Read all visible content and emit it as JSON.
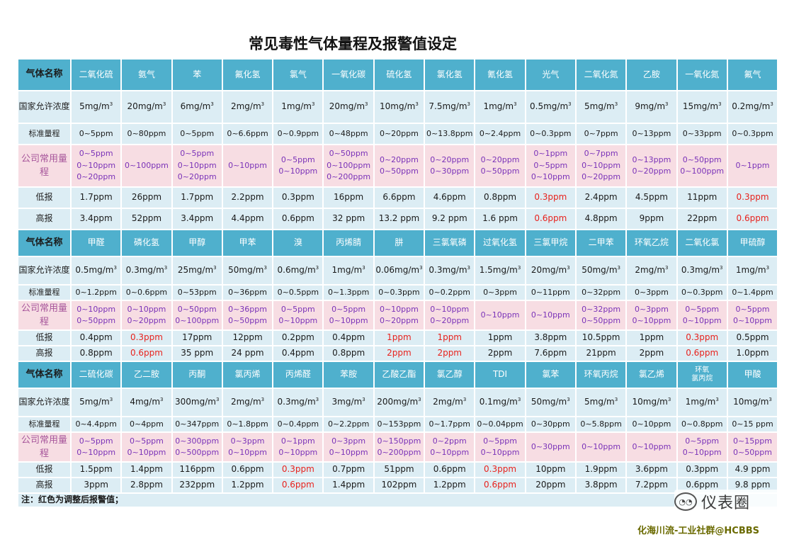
{
  "title": "常见毒性气体量程及报警值设定",
  "note": "注：红色为调整后报警值；",
  "watermark": "仪表圈",
  "credit": "化海川流-工业社群@HCBBS",
  "labels": {
    "gas_name": "气体名称",
    "concentration": "国家允许浓度",
    "standard_range": "标准量程",
    "company_range": "公司常用量程",
    "low_alarm": "低报",
    "high_alarm": "高报"
  },
  "colors": {
    "header": "#4fb0cd",
    "row": "#dcedf4",
    "company_row": "#f7dde3",
    "purple_text": "#7a32b8",
    "alarm_adjusted": "#e8221d"
  },
  "sections": [
    {
      "gases": [
        {
          "name": "二氧化硫",
          "conc": "5mg/m",
          "std": "0~5ppm",
          "company": [
            "0~5ppm",
            "0~10ppm",
            "0~20ppm"
          ],
          "low": "1.7ppm",
          "high": "3.4ppm",
          "adjusted": false
        },
        {
          "name": "氨气",
          "conc": "20mg/m",
          "std": "0~80ppm",
          "company": [
            "0~100ppm"
          ],
          "low": "26ppm",
          "high": "52ppm",
          "adjusted": false
        },
        {
          "name": "苯",
          "conc": "6mg/m",
          "std": "0~5ppm",
          "company": [
            "0~5ppm",
            "0~10ppm",
            "0~20ppm"
          ],
          "low": "1.7ppm",
          "high": "3.4ppm",
          "adjusted": false
        },
        {
          "name": "氟化氢",
          "conc": "2mg/m",
          "std": "0~6.6ppm",
          "company": [
            "0~10ppm"
          ],
          "low": "2.2ppm",
          "high": "4.4ppm",
          "adjusted": false
        },
        {
          "name": "氯气",
          "conc": "1mg/m",
          "std": "0~0.9ppm",
          "company": [
            "0~5ppm",
            "0~10ppm"
          ],
          "low": "0.3ppm",
          "high": "0.6ppm",
          "adjusted": false
        },
        {
          "name": "一氧化碳",
          "conc": "20mg/m",
          "std": "0~48ppm",
          "company": [
            "0~50ppm",
            "0~100ppm",
            "0~200ppm"
          ],
          "low": "16ppm",
          "high": "32 ppm",
          "adjusted": false
        },
        {
          "name": "硫化氢",
          "conc": "10mg/m",
          "std": "0~20ppm",
          "company": [
            "0~20ppm",
            "0~50ppm"
          ],
          "low": "6.6ppm",
          "high": "13.2 ppm",
          "adjusted": false
        },
        {
          "name": "氯化氢",
          "conc": "7.5mg/m",
          "std": "0~13.8ppm",
          "company": [
            "0~20ppm",
            "0~30ppm"
          ],
          "low": "4.6ppm",
          "high": "9.2 ppm",
          "adjusted": false
        },
        {
          "name": "氰化氢",
          "conc": "1mg/m",
          "std": "0~2.4ppm",
          "company": [
            "0~20ppm",
            "0~50ppm"
          ],
          "low": "0.8ppm",
          "high": "1.6 ppm",
          "adjusted": false
        },
        {
          "name": "光气",
          "conc": "0.5mg/m",
          "std": "0~0.3ppm",
          "company": [
            "0~1ppm",
            "0~5ppm",
            "0~10ppm"
          ],
          "low": "0.3ppm",
          "high": "0.6ppm",
          "adjusted": true
        },
        {
          "name": "二氧化氮",
          "conc": "5mg/m",
          "std": "0~7ppm",
          "company": [
            "0~7ppm",
            "0~10ppm",
            "0~20ppm"
          ],
          "low": "2.4ppm",
          "high": "4.8ppm",
          "adjusted": false
        },
        {
          "name": "乙胺",
          "conc": "9mg/m",
          "std": "0~13ppm",
          "company": [
            "0~13ppm",
            "0~20ppm"
          ],
          "low": "4.5ppm",
          "high": "9ppm",
          "adjusted": false
        },
        {
          "name": "一氧化氮",
          "conc": "15mg/m",
          "std": "0~33ppm",
          "company": [
            "0~50ppm",
            "0~100ppm"
          ],
          "low": "11ppm",
          "high": "22ppm",
          "adjusted": false
        },
        {
          "name": "氟气",
          "conc": "0.2mg/m",
          "std": "0~0.3ppm",
          "company": [
            "0~1ppm"
          ],
          "low": "0.3ppm",
          "high": "0.6ppm",
          "adjusted": true
        }
      ]
    },
    {
      "gases": [
        {
          "name": "甲醛",
          "conc": "0.5mg/m",
          "std": "0~1.2ppm",
          "company": [
            "0~10ppm",
            "0~50ppm"
          ],
          "low": "0.4ppm",
          "high": "0.8ppm",
          "adjusted": false
        },
        {
          "name": "磷化氢",
          "conc": "0.3mg/m",
          "std": "0~0.6ppm",
          "company": [
            "0~10ppm",
            "0~20ppm"
          ],
          "low": "0.3ppm",
          "high": "0.6ppm",
          "adjusted": true
        },
        {
          "name": "甲醇",
          "conc": "25mg/m",
          "std": "0~53ppm",
          "company": [
            "0~50ppm",
            "0~100ppm"
          ],
          "low": "17ppm",
          "high": "35 ppm",
          "adjusted": false
        },
        {
          "name": "甲苯",
          "conc": "50mg/m",
          "std": "0~36ppm",
          "company": [
            "0~36ppm",
            "0~50ppm"
          ],
          "low": "12ppm",
          "high": "24 ppm",
          "adjusted": false
        },
        {
          "name": "溴",
          "conc": "0.6mg/m",
          "std": "0~0.5ppm",
          "company": [
            "0~5ppm",
            "0~10ppm"
          ],
          "low": "0.2ppm",
          "high": "0.4ppm",
          "adjusted": false
        },
        {
          "name": "丙烯腈",
          "conc": "1mg/m",
          "std": "0~1.3ppm",
          "company": [
            "0~5ppm",
            "0~10ppm"
          ],
          "low": "0.4ppm",
          "high": "0.8ppm",
          "adjusted": false
        },
        {
          "name": "肼",
          "conc": "0.06mg/m",
          "std": "0~0.3ppm",
          "company": [
            "0~10ppm",
            "0~20ppm"
          ],
          "low": "1ppm",
          "high": "2ppm",
          "adjusted": true
        },
        {
          "name": "三氯氧磷",
          "conc": "0.3mg/m",
          "std": "0~0.2ppm",
          "company": [
            "0~10ppm",
            "0~20ppm"
          ],
          "low": "1ppm",
          "high": "2ppm",
          "adjusted": true
        },
        {
          "name": "过氧化氢",
          "conc": "1.5mg/m",
          "std": "0~3ppm",
          "company": [
            "0~10ppm"
          ],
          "low": "1ppm",
          "high": "2ppm",
          "adjusted": false
        },
        {
          "name": "三氯甲烷",
          "conc": "20mg/m",
          "std": "0~11ppm",
          "company": [
            "0~10ppm"
          ],
          "low": "3.8ppm",
          "high": "7.6ppm",
          "adjusted": false
        },
        {
          "name": "二甲苯",
          "conc": "50mg/m",
          "std": "0~32ppm",
          "company": [
            "0~32ppm",
            "0~50ppm"
          ],
          "low": "10.5ppm",
          "high": "21ppm",
          "adjusted": false
        },
        {
          "name": "环氧乙烷",
          "conc": "2mg/m",
          "std": "0~3ppm",
          "company": [
            "0~3ppm",
            "0~10ppm"
          ],
          "low": "1ppm",
          "high": "2ppm",
          "adjusted": false
        },
        {
          "name": "二氧化氯",
          "conc": "0.3mg/m",
          "std": "0~0.3ppm",
          "company": [
            "0~5ppm",
            "0~10ppm"
          ],
          "low": "0.3ppm",
          "high": "0.6ppm",
          "adjusted": true
        },
        {
          "name": "甲硫醇",
          "conc": "1mg/m",
          "std": "0~1.4ppm",
          "company": [
            "0~5ppm",
            "0~10ppm"
          ],
          "low": "0.5ppm",
          "high": "1.0ppm",
          "adjusted": false
        }
      ]
    },
    {
      "gases": [
        {
          "name": "二硫化碳",
          "conc": "5mg/m",
          "std": "0~4.4ppm",
          "company": [
            "0~5ppm",
            "0~10ppm"
          ],
          "low": "1.5ppm",
          "high": "3ppm",
          "adjusted": false
        },
        {
          "name": "乙二胺",
          "conc": "4mg/m",
          "std": "0~4ppm",
          "company": [
            "0~5ppm",
            "0~10ppm"
          ],
          "low": "1.4ppm",
          "high": "2.8ppm",
          "adjusted": false
        },
        {
          "name": "丙酮",
          "conc": "300mg/m",
          "std": "0~347ppm",
          "company": [
            "0~300ppm",
            "0~500ppm"
          ],
          "low": "116ppm",
          "high": "232ppm",
          "adjusted": false
        },
        {
          "name": "氯丙烯",
          "conc": "2mg/m",
          "std": "0~1.8ppm",
          "company": [
            "0~3ppm",
            "0~10ppm"
          ],
          "low": "0.6ppm",
          "high": "1.2ppm",
          "adjusted": false
        },
        {
          "name": "丙烯醛",
          "conc": "0.3mg/m",
          "std": "0~0.4ppm",
          "company": [
            "0~1ppm",
            "0~10ppm"
          ],
          "low": "0.3ppm",
          "high": "0.6ppm",
          "adjusted": true
        },
        {
          "name": "苯胺",
          "conc": "3mg/m",
          "std": "0~2.2ppm",
          "company": [
            "0~3ppm",
            "0~10ppm"
          ],
          "low": "0.7ppm",
          "high": "1.4ppm",
          "adjusted": false
        },
        {
          "name": "乙酸乙酯",
          "conc": "200mg/m",
          "std": "0~153ppm",
          "company": [
            "0~150ppm",
            "0~200ppm"
          ],
          "low": "51ppm",
          "high": "102ppm",
          "adjusted": false
        },
        {
          "name": "氯乙醇",
          "conc": "2mg/m",
          "std": "0~1.7ppm",
          "company": [
            "0~2ppm",
            "0~10ppm"
          ],
          "low": "0.6ppm",
          "high": "1.2ppm",
          "adjusted": false
        },
        {
          "name": "TDI",
          "conc": "0.1mg/m",
          "std": "0~0.04ppm",
          "company": [
            "0~5ppm",
            "0~10ppm"
          ],
          "low": "0.3ppm",
          "high": "0.6ppm",
          "adjusted": true
        },
        {
          "name": "氯苯",
          "conc": "50mg/m",
          "std": "0~30ppm",
          "company": [
            "0~30ppm"
          ],
          "low": "10ppm",
          "high": "20ppm",
          "adjusted": false
        },
        {
          "name": "环氧丙烷",
          "conc": "5mg/m",
          "std": "0~5.8ppm",
          "company": [
            "0~10ppm"
          ],
          "low": "1.9ppm",
          "high": "3.8ppm",
          "adjusted": false
        },
        {
          "name": "氯乙烯",
          "conc": "10mg/m",
          "std": "0~10ppm",
          "company": [
            "0~10ppm"
          ],
          "low": "3.6ppm",
          "high": "7.2ppm",
          "adjusted": false
        },
        {
          "name": "环氧氯丙烷",
          "name_lines": [
            "环氧",
            "氯丙烷"
          ],
          "conc": "1mg/m",
          "std": "0~0.8ppm",
          "company": [
            "0~5ppm",
            "0~10ppm"
          ],
          "low": "0.3ppm",
          "high": "0.6ppm",
          "adjusted": false
        },
        {
          "name": "甲酸",
          "conc": "10mg/m",
          "std": "0~15 ppm",
          "company": [
            "0~15ppm",
            "0~50ppm"
          ],
          "low": "4.9 ppm",
          "high": "9.8 ppm",
          "adjusted": false
        }
      ]
    }
  ]
}
